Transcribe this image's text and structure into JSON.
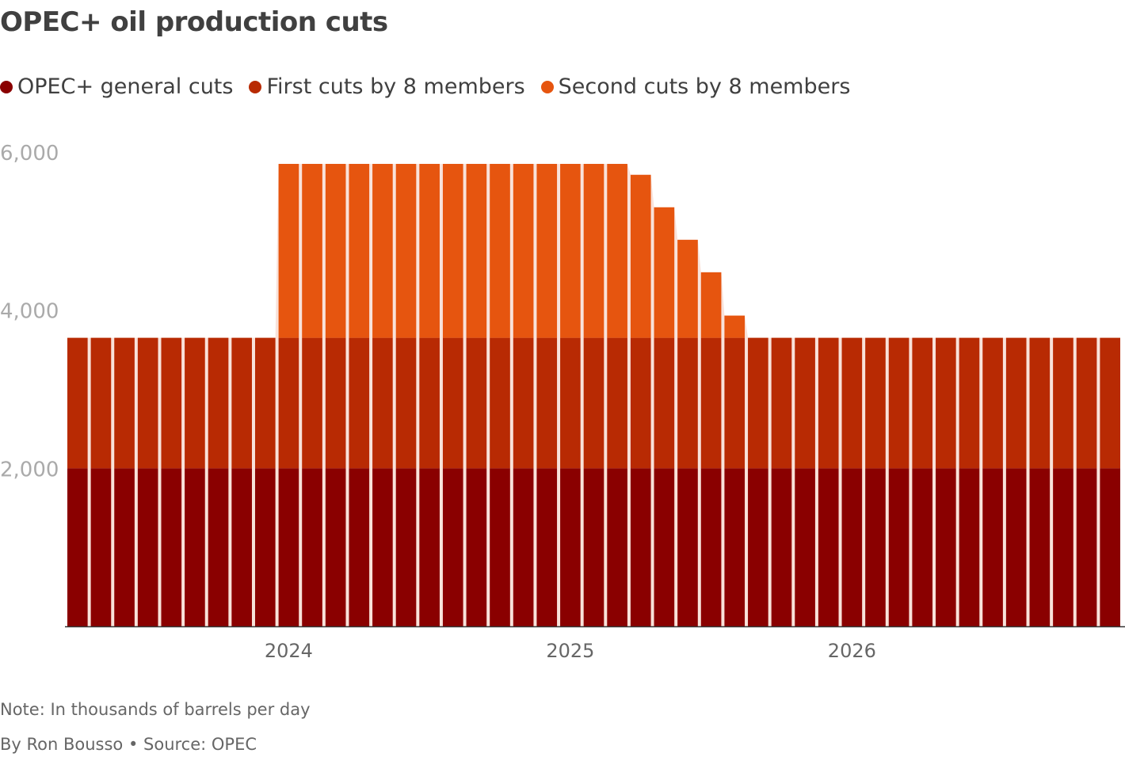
{
  "title": "OPEC+ oil production cuts",
  "note": "Note: In thousands of barrels per day",
  "byline": "By Ron Bousso • Source: OPEC",
  "chart_data": {
    "type": "bar",
    "stacked": true,
    "title": "OPEC+ oil production cuts",
    "xlabel": "",
    "ylabel": "",
    "ylim": [
      0,
      6000
    ],
    "yticks": [
      2000,
      4000,
      6000
    ],
    "ytick_labels": [
      "2,000",
      "4,000",
      "6,000"
    ],
    "xtick_labels": [
      "2024",
      "2025",
      "2026"
    ],
    "xtick_months": [
      "2024-01",
      "2025-01",
      "2026-01"
    ],
    "grid": false,
    "legend_position": "top-left",
    "categories": [
      "2023-04",
      "2023-05",
      "2023-06",
      "2023-07",
      "2023-08",
      "2023-09",
      "2023-10",
      "2023-11",
      "2023-12",
      "2024-01",
      "2024-02",
      "2024-03",
      "2024-04",
      "2024-05",
      "2024-06",
      "2024-07",
      "2024-08",
      "2024-09",
      "2024-10",
      "2024-11",
      "2024-12",
      "2025-01",
      "2025-02",
      "2025-03",
      "2025-04",
      "2025-05",
      "2025-06",
      "2025-07",
      "2025-08",
      "2025-09",
      "2025-10",
      "2025-11",
      "2025-12",
      "2026-01",
      "2026-02",
      "2026-03",
      "2026-04",
      "2026-05",
      "2026-06",
      "2026-07",
      "2026-08",
      "2026-09",
      "2026-10",
      "2026-11",
      "2026-12"
    ],
    "series": [
      {
        "name": "OPEC+ general cuts",
        "color": "#8a0000",
        "values": [
          2000,
          2000,
          2000,
          2000,
          2000,
          2000,
          2000,
          2000,
          2000,
          2000,
          2000,
          2000,
          2000,
          2000,
          2000,
          2000,
          2000,
          2000,
          2000,
          2000,
          2000,
          2000,
          2000,
          2000,
          2000,
          2000,
          2000,
          2000,
          2000,
          2000,
          2000,
          2000,
          2000,
          2000,
          2000,
          2000,
          2000,
          2000,
          2000,
          2000,
          2000,
          2000,
          2000,
          2000,
          2000
        ]
      },
      {
        "name": "First cuts by 8 members",
        "color": "#b82a03",
        "values": [
          1650,
          1650,
          1650,
          1650,
          1650,
          1650,
          1650,
          1650,
          1650,
          1650,
          1650,
          1650,
          1650,
          1650,
          1650,
          1650,
          1650,
          1650,
          1650,
          1650,
          1650,
          1650,
          1650,
          1650,
          1650,
          1650,
          1650,
          1650,
          1650,
          1650,
          1650,
          1650,
          1650,
          1650,
          1650,
          1650,
          1650,
          1650,
          1650,
          1650,
          1650,
          1650,
          1650,
          1650,
          1650
        ]
      },
      {
        "name": "Second cuts by 8 members",
        "color": "#e6550f",
        "values": [
          0,
          0,
          0,
          0,
          0,
          0,
          0,
          0,
          0,
          2200,
          2200,
          2200,
          2200,
          2200,
          2200,
          2200,
          2200,
          2200,
          2200,
          2200,
          2200,
          2200,
          2200,
          2200,
          2062,
          1651,
          1240,
          829,
          281,
          0,
          0,
          0,
          0,
          0,
          0,
          0,
          0,
          0,
          0,
          0,
          0,
          0,
          0,
          0,
          0
        ]
      }
    ]
  }
}
